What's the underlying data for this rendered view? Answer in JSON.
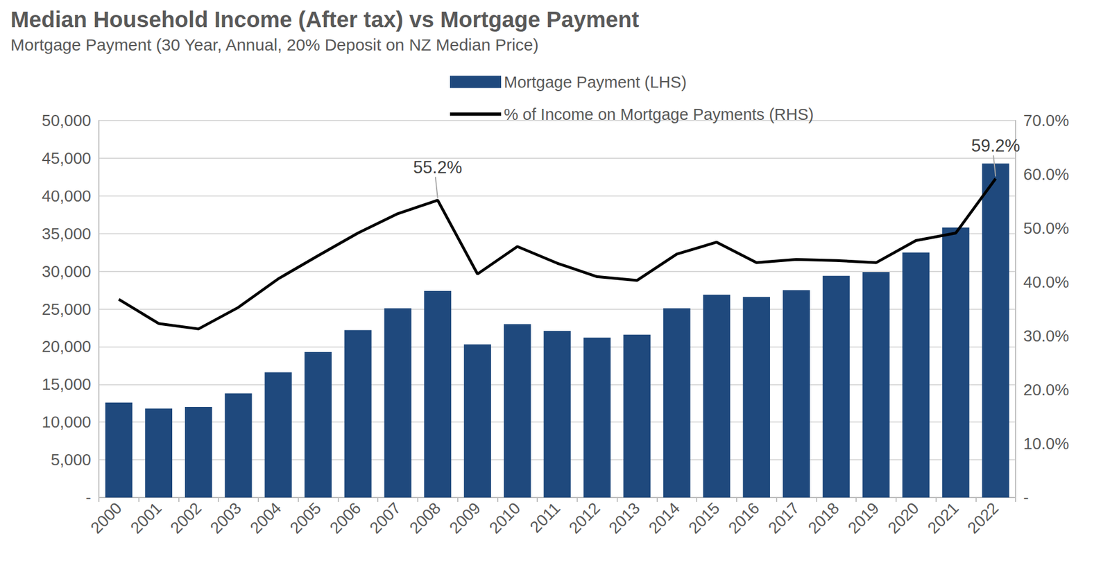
{
  "chart_data": {
    "type": "bar",
    "title": "Median Household Income (After tax) vs Mortgage Payment",
    "subtitle": "Mortgage Payment (30 Year, Annual, 20% Deposit on NZ Median Price)",
    "categories": [
      "2000",
      "2001",
      "2002",
      "2003",
      "2004",
      "2005",
      "2006",
      "2007",
      "2008",
      "2009",
      "2010",
      "2011",
      "2012",
      "2013",
      "2014",
      "2015",
      "2016",
      "2017",
      "2018",
      "2019",
      "2020",
      "2021",
      "2022"
    ],
    "series": [
      {
        "name": "Mortgage Payment (LHS)",
        "type": "bar",
        "color": "#1f497d",
        "values": [
          12600,
          11800,
          12000,
          13800,
          16600,
          19300,
          22200,
          25100,
          27400,
          20300,
          23000,
          22100,
          21200,
          21600,
          25100,
          26900,
          26600,
          27500,
          29400,
          29900,
          32500,
          35800,
          44300
        ]
      },
      {
        "name": "% of Income on Mortgage Payments (RHS)",
        "type": "line",
        "axis": "y2",
        "color": "#000000",
        "values": [
          36.8,
          32.3,
          31.3,
          35.3,
          40.6,
          44.9,
          49.1,
          52.7,
          55.2,
          41.5,
          46.6,
          43.5,
          41.0,
          40.3,
          45.2,
          47.4,
          43.6,
          44.2,
          44.0,
          43.6,
          47.7,
          49.1,
          59.2
        ]
      }
    ],
    "annotations": [
      {
        "category": "2008",
        "series": "% of Income on Mortgage Payments (RHS)",
        "value": 55.2,
        "text": "55.2%"
      },
      {
        "category": "2022",
        "series": "% of Income on Mortgage Payments (RHS)",
        "value": 59.2,
        "text": "59.2%"
      }
    ],
    "ylim": [
      0,
      50000
    ],
    "yticks": [
      {
        "value": 0,
        "label": "-"
      },
      {
        "value": 5000,
        "label": "5,000"
      },
      {
        "value": 10000,
        "label": "10,000"
      },
      {
        "value": 15000,
        "label": "15,000"
      },
      {
        "value": 20000,
        "label": "20,000"
      },
      {
        "value": 25000,
        "label": "25,000"
      },
      {
        "value": 30000,
        "label": "30,000"
      },
      {
        "value": 35000,
        "label": "35,000"
      },
      {
        "value": 40000,
        "label": "40,000"
      },
      {
        "value": 45000,
        "label": "45,000"
      },
      {
        "value": 50000,
        "label": "50,000"
      }
    ],
    "y2lim": [
      0,
      70
    ],
    "y2ticks": [
      {
        "value": 0,
        "label": "-"
      },
      {
        "value": 10,
        "label": "10.0%"
      },
      {
        "value": 20,
        "label": "20.0%"
      },
      {
        "value": 30,
        "label": "30.0%"
      },
      {
        "value": 40,
        "label": "40.0%"
      },
      {
        "value": 50,
        "label": "50.0%"
      },
      {
        "value": 60,
        "label": "60.0%"
      },
      {
        "value": 70,
        "label": "70.0%"
      }
    ],
    "grid": true,
    "legend": "top"
  }
}
